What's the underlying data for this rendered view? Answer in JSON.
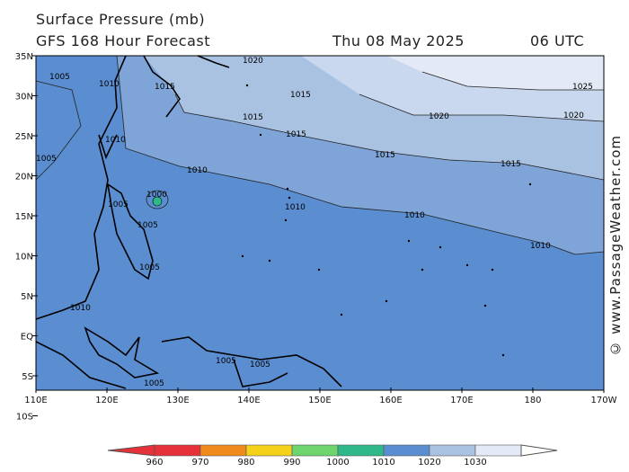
{
  "header": {
    "title": "Surface Pressure (mb)",
    "model": "GFS 168 Hour Forecast",
    "date": "Thu 08 May 2025",
    "time": "06 UTC"
  },
  "watermark": "© www.PassageWeather.com",
  "axes": {
    "lat_labels": [
      "35N",
      "30N",
      "25N",
      "20N",
      "15N",
      "10N",
      "5N",
      "EQ",
      "5S",
      "10S"
    ],
    "lon_labels": [
      "110E",
      "120E",
      "130E",
      "140E",
      "150E",
      "160E",
      "170E",
      "180",
      "170W"
    ]
  },
  "isobar_labels": [
    {
      "text": "1005"
    },
    {
      "text": "1010"
    },
    {
      "text": "1015"
    },
    {
      "text": "1020"
    },
    {
      "text": "1025"
    },
    {
      "text": "1000"
    }
  ],
  "legend": {
    "values": [
      "960",
      "970",
      "980",
      "990",
      "1000",
      "1010",
      "1020",
      "1030"
    ],
    "colors": [
      "#e6303a",
      "#f08a1a",
      "#f5d21a",
      "#6ed46e",
      "#2fb98a",
      "#5b8ed0",
      "#a9c2e2",
      "#e3eaf6"
    ]
  },
  "colors": {
    "band_1005_1010": "#5b8ed0",
    "band_1010_1015": "#7ea4d8",
    "band_1015_1020": "#a9c2e2",
    "band_1020_1025": "#c9d8ee",
    "band_1025_1030": "#e3eaf6",
    "land": "#000000"
  }
}
